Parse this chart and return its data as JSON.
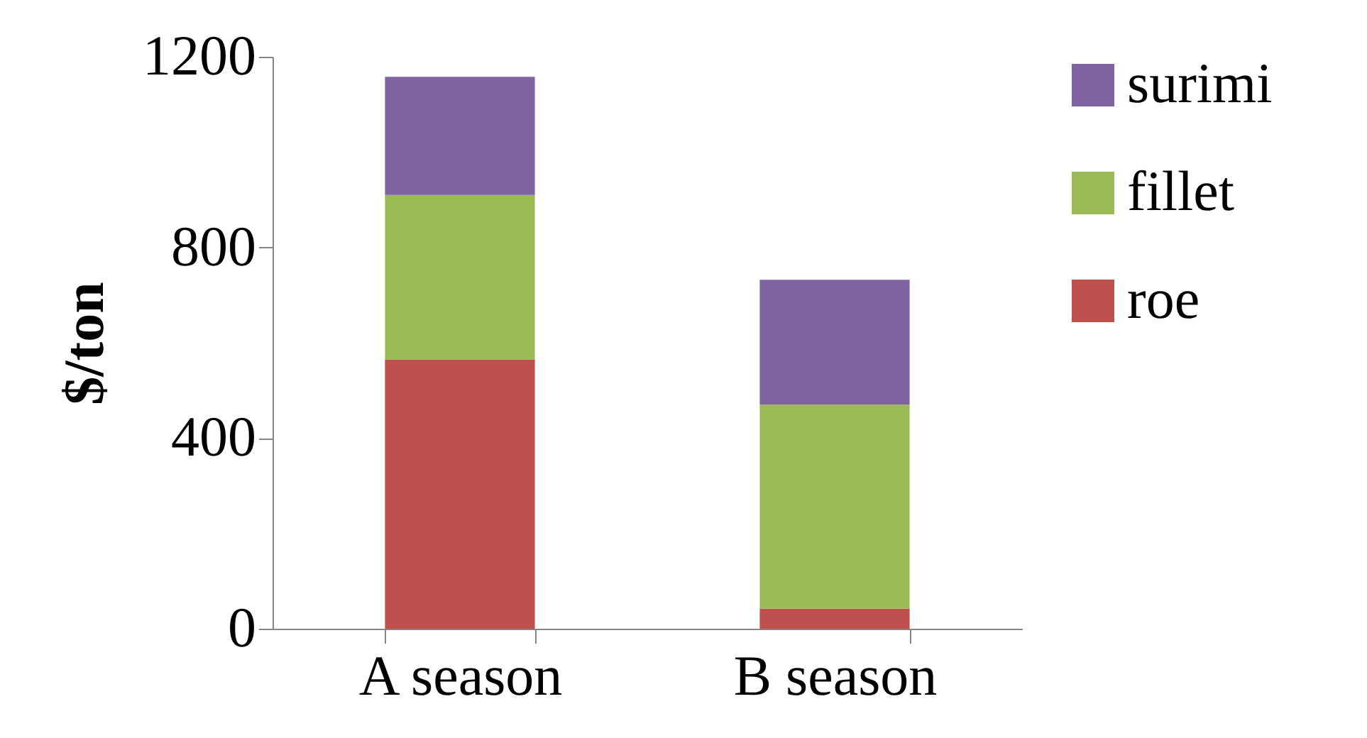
{
  "chart_data": {
    "type": "bar",
    "stacked": true,
    "ylabel": "$/ton",
    "categories": [
      "A season",
      "B season"
    ],
    "series": [
      {
        "name": "roe",
        "color": "#c0504d",
        "values": [
          565,
          42
        ]
      },
      {
        "name": "fillet",
        "color": "#9bbb59",
        "values": [
          345,
          428
        ]
      },
      {
        "name": "surimi",
        "color": "#8064a2",
        "values": [
          248,
          262
        ]
      }
    ],
    "ylim": [
      0,
      1200
    ],
    "yticks": [
      0,
      400,
      800,
      1200
    ],
    "grid": false,
    "legend": "right"
  }
}
